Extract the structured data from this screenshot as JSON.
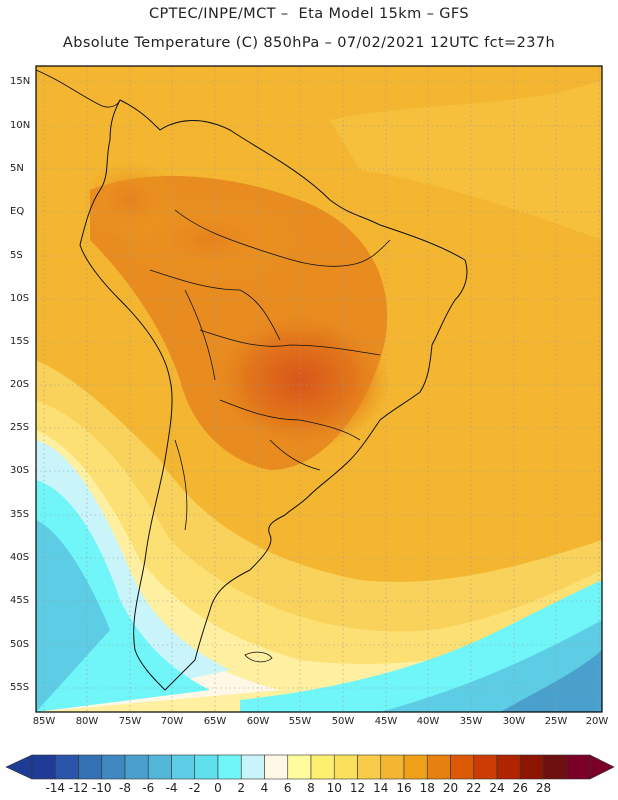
{
  "header": {
    "line1": "CPTEC/INPE/MCT –  Eta Model 15km – GFS",
    "line2": "Absolute Temperature (C) 850hPa – 07/02/2021 12UTC fct=237h"
  },
  "map": {
    "lat_labels": [
      "15N",
      "10N",
      "5N",
      "EQ",
      "5S",
      "10S",
      "15S",
      "20S",
      "25S",
      "30S",
      "35S",
      "40S",
      "45S",
      "50S",
      "55S"
    ],
    "lon_labels": [
      "85W",
      "80W",
      "75W",
      "70W",
      "65W",
      "60W",
      "55W",
      "50W",
      "45W",
      "40W",
      "35W",
      "30W",
      "25W",
      "20W"
    ]
  },
  "colorbar": {
    "labels": [
      "-14",
      "-12",
      "-10",
      "-8",
      "-6",
      "-4",
      "-2",
      "0",
      "2",
      "4",
      "6",
      "8",
      "10",
      "12",
      "14",
      "16",
      "18",
      "20",
      "22",
      "24",
      "26",
      "28"
    ],
    "colors": [
      "#1e3c96",
      "#2b55a8",
      "#3470b4",
      "#3f88c0",
      "#4aa0cc",
      "#52b6d8",
      "#5ccde4",
      "#5fe0ec",
      "#70f6f8",
      "#c8f4fa",
      "#fff8e6",
      "#fefc9c",
      "#fdf070",
      "#fbe05c",
      "#f8cc48",
      "#f4b630",
      "#eea018",
      "#e6800e",
      "#dc5a06",
      "#cc3c04",
      "#b02400",
      "#8c1400",
      "#6e1010",
      "#7a0028"
    ],
    "under_color": "#1e3c96",
    "over_color": "#7a0028"
  }
}
